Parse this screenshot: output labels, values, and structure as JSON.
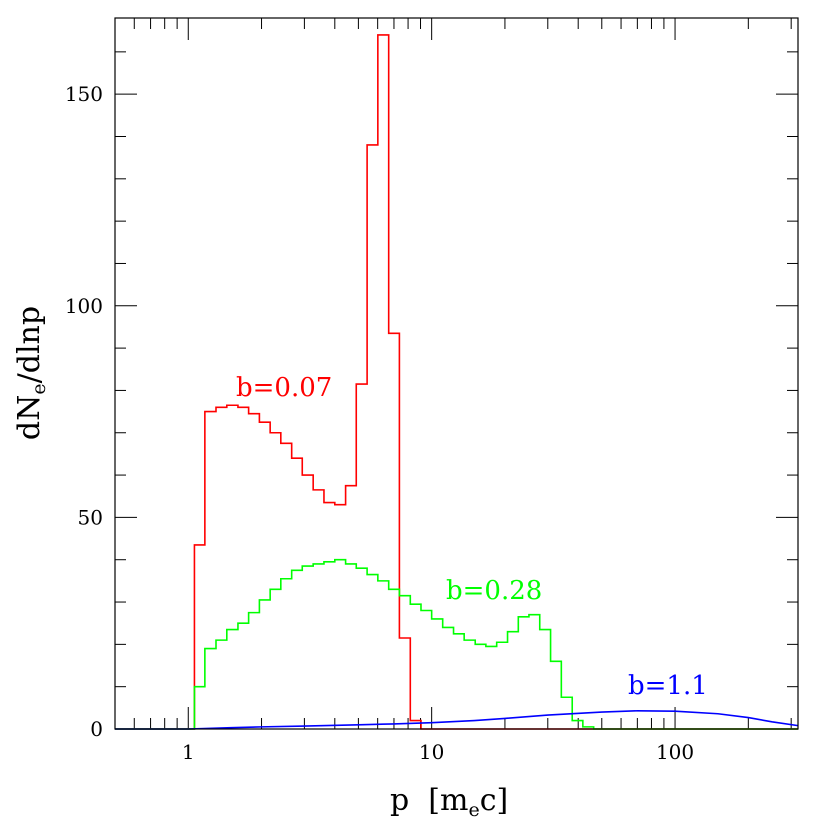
{
  "chart_data": {
    "type": "line",
    "xscale": "log",
    "xlim": [
      0.5,
      320
    ],
    "ylim": [
      0,
      168
    ],
    "grid": false,
    "xlabel": "p [m_e c]",
    "ylabel": "dN_e/dlnp",
    "x_ticks": [
      1,
      10,
      100
    ],
    "y_ticks": [
      0,
      50,
      100,
      150
    ],
    "series": [
      {
        "name": "b=0.07",
        "color": "#ff0000",
        "step": true,
        "edges": [
          1.06,
          1.17,
          1.3,
          1.44,
          1.6,
          1.77,
          1.96,
          2.17,
          2.4,
          2.66,
          2.94,
          3.26,
          3.61,
          4.0,
          4.43,
          4.9,
          5.43,
          6.01,
          6.66,
          7.37,
          8.17,
          9.04
        ],
        "values": [
          43.5,
          75,
          76,
          76.5,
          76,
          74.5,
          72.5,
          70,
          67.5,
          64,
          60,
          56.5,
          53.5,
          53,
          57.5,
          81.5,
          138,
          164,
          93.5,
          21.5,
          2
        ]
      },
      {
        "name": "b=0.28",
        "color": "#00ff00",
        "step": true,
        "edges": [
          1.06,
          1.17,
          1.3,
          1.44,
          1.6,
          1.77,
          1.96,
          2.17,
          2.4,
          2.66,
          2.94,
          3.26,
          3.61,
          4.0,
          4.43,
          4.9,
          5.43,
          6.01,
          6.66,
          7.37,
          8.17,
          9.04,
          10.0,
          11.1,
          12.3,
          13.6,
          15.1,
          16.7,
          18.5,
          20.5,
          22.7,
          25.1,
          27.8,
          30.8,
          34.1,
          37.8,
          41.8,
          46.3,
          51.3
        ],
        "values": [
          10,
          19,
          21,
          23.5,
          25,
          27.5,
          30.5,
          33,
          35.5,
          37.5,
          38.5,
          39,
          39.5,
          40,
          39,
          38,
          36.5,
          35,
          33,
          31.5,
          29.5,
          28,
          26,
          24,
          22.5,
          21,
          20,
          19.5,
          20.5,
          23,
          26.5,
          27,
          23.5,
          16,
          7.5,
          2,
          0.5,
          0
        ]
      },
      {
        "name": "b=1.1",
        "color": "#0000ff",
        "step": false,
        "x": [
          1,
          1.5,
          2,
          3,
          5,
          7,
          10,
          15,
          20,
          30,
          50,
          70,
          100,
          150,
          200,
          250,
          320
        ],
        "y": [
          0,
          0.3,
          0.5,
          0.7,
          1.0,
          1.2,
          1.5,
          2.0,
          2.5,
          3.3,
          4.0,
          4.3,
          4.2,
          3.6,
          2.7,
          1.7,
          0.8
        ]
      }
    ],
    "annotations": [
      {
        "text": "b=0.07",
        "color": "#ff0000"
      },
      {
        "text": "b=0.28",
        "color": "#00ff00"
      },
      {
        "text": "b=1.1",
        "color": "#0000ff"
      }
    ]
  }
}
